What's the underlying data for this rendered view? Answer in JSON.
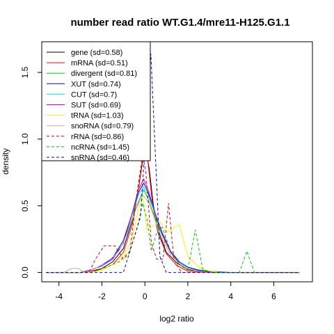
{
  "chart_data": {
    "type": "line",
    "title": "number read ratio WT.G1.4/mre11-H125.G1.1",
    "xlabel": "log2 ratio",
    "ylabel": "density",
    "xlim": [
      -4.8,
      7.8
    ],
    "ylim": [
      -0.07,
      1.73
    ],
    "x_ticks": [
      -4,
      -2,
      0,
      2,
      4,
      6
    ],
    "x_tick_labels": [
      "-4",
      "-2",
      "0",
      "2",
      "4",
      "6"
    ],
    "y_ticks": [
      0.0,
      0.5,
      1.0,
      1.5
    ],
    "y_tick_labels": [
      "0.0",
      "0.5",
      "1.0",
      "1.5"
    ],
    "legend_position": "top-left",
    "grid": false,
    "series": [
      {
        "name": "gene (sd=0.58)",
        "color": "#000000",
        "dash": "solid",
        "points": [
          [
            -4.6,
            0
          ],
          [
            -3,
            0
          ],
          [
            -2.5,
            0.01
          ],
          [
            -2,
            0.03
          ],
          [
            -1.5,
            0.08
          ],
          [
            -1,
            0.18
          ],
          [
            -0.6,
            0.38
          ],
          [
            -0.3,
            0.62
          ],
          [
            -0.1,
            0.84
          ],
          [
            0.05,
            0.92
          ],
          [
            0.2,
            0.78
          ],
          [
            0.4,
            0.5
          ],
          [
            0.7,
            0.28
          ],
          [
            1,
            0.15
          ],
          [
            1.5,
            0.07
          ],
          [
            2,
            0.02
          ],
          [
            3,
            0.005
          ],
          [
            4,
            0
          ],
          [
            7.2,
            0
          ]
        ]
      },
      {
        "name": "mRNA (sd=0.51)",
        "color": "#ff0000",
        "dash": "solid",
        "points": [
          [
            -4.6,
            0
          ],
          [
            -3,
            0
          ],
          [
            -2.5,
            0.01
          ],
          [
            -2,
            0.02
          ],
          [
            -1.5,
            0.06
          ],
          [
            -1,
            0.15
          ],
          [
            -0.6,
            0.35
          ],
          [
            -0.3,
            0.62
          ],
          [
            -0.1,
            0.86
          ],
          [
            0,
            0.96
          ],
          [
            0.15,
            0.82
          ],
          [
            0.35,
            0.52
          ],
          [
            0.6,
            0.3
          ],
          [
            1,
            0.14
          ],
          [
            1.5,
            0.05
          ],
          [
            2,
            0.01
          ],
          [
            3,
            0
          ],
          [
            7.2,
            0
          ]
        ]
      },
      {
        "name": "divergent (sd=0.81)",
        "color": "#00cc00",
        "dash": "solid",
        "points": [
          [
            -4.6,
            0
          ],
          [
            -3,
            0
          ],
          [
            -2.5,
            0.02
          ],
          [
            -2,
            0.05
          ],
          [
            -1.5,
            0.11
          ],
          [
            -1,
            0.22
          ],
          [
            -0.6,
            0.4
          ],
          [
            -0.25,
            0.55
          ],
          [
            -0.05,
            0.62
          ],
          [
            0.15,
            0.55
          ],
          [
            0.45,
            0.42
          ],
          [
            0.8,
            0.28
          ],
          [
            1.2,
            0.15
          ],
          [
            1.6,
            0.08
          ],
          [
            2,
            0.04
          ],
          [
            2.5,
            0.02
          ],
          [
            3,
            0.01
          ],
          [
            4,
            0
          ],
          [
            7.2,
            0
          ]
        ]
      },
      {
        "name": "XUT (sd=0.74)",
        "color": "#0000ff",
        "dash": "solid",
        "points": [
          [
            -4.6,
            0
          ],
          [
            -3,
            0
          ],
          [
            -2.5,
            0.02
          ],
          [
            -2,
            0.05
          ],
          [
            -1.5,
            0.11
          ],
          [
            -1,
            0.24
          ],
          [
            -0.6,
            0.44
          ],
          [
            -0.3,
            0.6
          ],
          [
            -0.05,
            0.67
          ],
          [
            0.15,
            0.6
          ],
          [
            0.45,
            0.46
          ],
          [
            0.8,
            0.3
          ],
          [
            1.2,
            0.16
          ],
          [
            1.6,
            0.08
          ],
          [
            2,
            0.04
          ],
          [
            2.5,
            0.015
          ],
          [
            3,
            0.005
          ],
          [
            4,
            0
          ],
          [
            7.2,
            0
          ]
        ]
      },
      {
        "name": "CUT (sd=0.7)",
        "color": "#00e5e5",
        "dash": "solid",
        "points": [
          [
            -4.6,
            0
          ],
          [
            -3,
            0
          ],
          [
            -2.5,
            0.02
          ],
          [
            -2,
            0.05
          ],
          [
            -1.5,
            0.1
          ],
          [
            -1,
            0.22
          ],
          [
            -0.6,
            0.43
          ],
          [
            -0.3,
            0.58
          ],
          [
            -0.05,
            0.64
          ],
          [
            0.15,
            0.58
          ],
          [
            0.45,
            0.45
          ],
          [
            0.8,
            0.29
          ],
          [
            1.2,
            0.15
          ],
          [
            1.6,
            0.07
          ],
          [
            2,
            0.03
          ],
          [
            2.5,
            0.01
          ],
          [
            3,
            0
          ],
          [
            7.2,
            0
          ]
        ]
      },
      {
        "name": "SUT (sd=0.69)",
        "color": "#cc00cc",
        "dash": "solid",
        "points": [
          [
            -4.6,
            0
          ],
          [
            -3,
            0
          ],
          [
            -2.5,
            0.02
          ],
          [
            -2,
            0.05
          ],
          [
            -1.5,
            0.1
          ],
          [
            -1,
            0.22
          ],
          [
            -0.6,
            0.44
          ],
          [
            -0.3,
            0.62
          ],
          [
            -0.05,
            0.7
          ],
          [
            0.15,
            0.62
          ],
          [
            0.45,
            0.46
          ],
          [
            0.8,
            0.29
          ],
          [
            1.2,
            0.15
          ],
          [
            1.6,
            0.07
          ],
          [
            2,
            0.03
          ],
          [
            2.5,
            0.01
          ],
          [
            3,
            0
          ],
          [
            7.2,
            0
          ]
        ]
      },
      {
        "name": "tRNA (sd=1.03)",
        "color": "#ffee00",
        "dash": "solid",
        "points": [
          [
            -4.6,
            0
          ],
          [
            -2.5,
            0
          ],
          [
            -2,
            0.02
          ],
          [
            -1.5,
            0.06
          ],
          [
            -1,
            0.12
          ],
          [
            -0.6,
            0.25
          ],
          [
            -0.3,
            0.48
          ],
          [
            -0.1,
            0.56
          ],
          [
            0.1,
            0.32
          ],
          [
            0.4,
            0.35
          ],
          [
            0.7,
            0.38
          ],
          [
            1,
            0.3
          ],
          [
            1.3,
            0.33
          ],
          [
            1.6,
            0.36
          ],
          [
            2,
            0.12
          ],
          [
            2.5,
            0.04
          ],
          [
            3,
            0.01
          ],
          [
            3.5,
            0
          ],
          [
            7.2,
            0
          ]
        ]
      },
      {
        "name": "snoRNA (sd=0.79)",
        "color": "#b3b3b3",
        "dash": "solid",
        "points": [
          [
            -4.6,
            0
          ],
          [
            -3.8,
            0
          ],
          [
            -3.4,
            0.03
          ],
          [
            -3.1,
            0.03
          ],
          [
            -2.8,
            0
          ],
          [
            -2.3,
            0.03
          ],
          [
            -2,
            0.06
          ],
          [
            -1.6,
            0.1
          ],
          [
            -1.2,
            0.16
          ],
          [
            -0.8,
            0.3
          ],
          [
            -0.4,
            0.48
          ],
          [
            -0.1,
            0.58
          ],
          [
            0.2,
            0.52
          ],
          [
            0.5,
            0.38
          ],
          [
            0.8,
            0.25
          ],
          [
            1.2,
            0.13
          ],
          [
            1.6,
            0.07
          ],
          [
            2,
            0.03
          ],
          [
            2.5,
            0.01
          ],
          [
            3,
            0
          ],
          [
            7.2,
            0
          ]
        ]
      },
      {
        "name": "rRNA (sd=0.86)",
        "color": "#dd0000",
        "dash": "dashed",
        "points": [
          [
            -4.6,
            0
          ],
          [
            -2.6,
            0
          ],
          [
            -2.3,
            0.1
          ],
          [
            -1.9,
            0.2
          ],
          [
            -1.4,
            0.2
          ],
          [
            -1,
            0.1
          ],
          [
            -0.7,
            0.15
          ],
          [
            -0.35,
            0.62
          ],
          [
            -0.1,
            0.88
          ],
          [
            0.05,
            0.75
          ],
          [
            0.3,
            0.22
          ],
          [
            0.55,
            0.1
          ],
          [
            0.85,
            0.1
          ],
          [
            1.1,
            0.52
          ],
          [
            1.35,
            0.1
          ],
          [
            1.7,
            0
          ],
          [
            7.2,
            0
          ]
        ]
      },
      {
        "name": "ncRNA (sd=1.45)",
        "color": "#00bb00",
        "dash": "dashed",
        "points": [
          [
            -4.6,
            0
          ],
          [
            -2.5,
            0
          ],
          [
            -1.8,
            0.04
          ],
          [
            -1.2,
            0.08
          ],
          [
            -0.7,
            0.16
          ],
          [
            -0.35,
            0.34
          ],
          [
            -0.1,
            0.52
          ],
          [
            0.1,
            0.4
          ],
          [
            0.3,
            0.16
          ],
          [
            0.55,
            0.3
          ],
          [
            0.8,
            0.34
          ],
          [
            1.2,
            0.16
          ],
          [
            1.6,
            0.06
          ],
          [
            2,
            0.02
          ],
          [
            2.35,
            0.32
          ],
          [
            2.7,
            0.02
          ],
          [
            3.2,
            0
          ],
          [
            4.4,
            0
          ],
          [
            4.75,
            0.16
          ],
          [
            5.1,
            0
          ],
          [
            7.2,
            0
          ]
        ]
      },
      {
        "name": "snRNA (sd=0.46)",
        "color": "#0000cc",
        "dash": "dashed",
        "points": [
          [
            -4.6,
            0
          ],
          [
            -1,
            0
          ],
          [
            -0.2,
            0.42
          ],
          [
            0.28,
            1.64
          ],
          [
            0.7,
            0.12
          ],
          [
            1,
            0
          ],
          [
            7.2,
            0
          ]
        ]
      }
    ]
  }
}
